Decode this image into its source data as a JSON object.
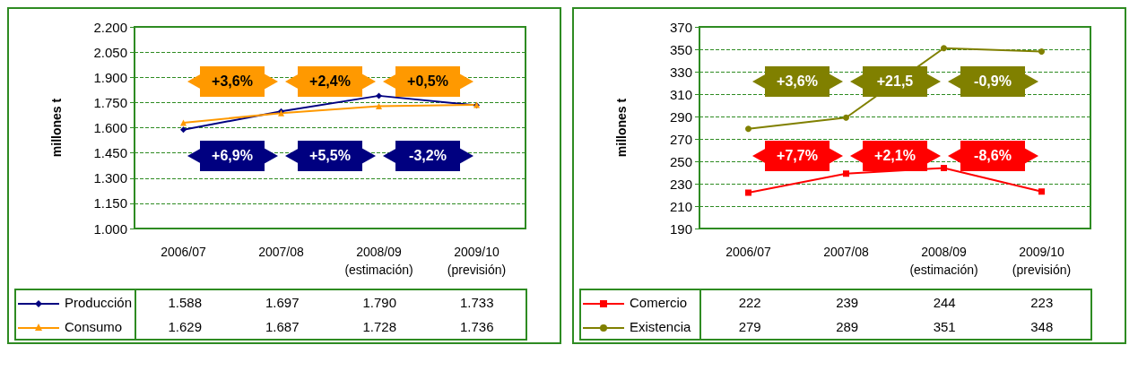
{
  "chart_data": [
    {
      "type": "line",
      "ylabel": "millones t",
      "categories": [
        "2006/07",
        "2007/08",
        "2008/09\n(estimación)",
        "2009/10\n(previsión)"
      ],
      "series": [
        {
          "name": "Producción",
          "color": "#000080",
          "marker": "diamond",
          "values": [
            1588,
            1697,
            1790,
            1733
          ],
          "value_labels": [
            "1.588",
            "1.697",
            "1.790",
            "1.733"
          ]
        },
        {
          "name": "Consumo",
          "color": "#ff9900",
          "marker": "triangle",
          "values": [
            1629,
            1687,
            1728,
            1736
          ],
          "value_labels": [
            "1.629",
            "1.687",
            "1.728",
            "1.736"
          ]
        }
      ],
      "ylim": [
        1000,
        2200
      ],
      "yticks": [
        {
          "value": 1000,
          "label": "1.000"
        },
        {
          "value": 1150,
          "label": "1.150"
        },
        {
          "value": 1300,
          "label": "1.300"
        },
        {
          "value": 1450,
          "label": "1.450"
        },
        {
          "value": 1600,
          "label": "1.600"
        },
        {
          "value": 1750,
          "label": "1.750"
        },
        {
          "value": 1900,
          "label": "1.900"
        },
        {
          "value": 2050,
          "label": "2.050"
        },
        {
          "value": 2200,
          "label": "2.200"
        }
      ],
      "grid": "y",
      "legend": "bottom",
      "annotations": [
        "+3,6%",
        "+2,4%",
        "+0,5%",
        "+6,9%",
        "+5,5%",
        "-3,2%"
      ]
    },
    {
      "type": "line",
      "ylabel": "millones t",
      "categories": [
        "2006/07",
        "2007/08",
        "2008/09\n(estimación)",
        "2009/10\n(previsión)"
      ],
      "series": [
        {
          "name": "Comercio",
          "color": "#ff0000",
          "marker": "square",
          "values": [
            222,
            239,
            244,
            223
          ]
        },
        {
          "name": "Existencia",
          "color": "#808000",
          "marker": "circle",
          "values": [
            279,
            289,
            351,
            348
          ]
        }
      ],
      "ylim": [
        190,
        370
      ],
      "yticks": [
        190,
        210,
        230,
        250,
        270,
        290,
        310,
        330,
        350,
        370
      ],
      "grid": "y",
      "legend": "bottom",
      "data_labels": true,
      "annotations": [
        "+3,6%",
        "+21,5",
        "-0,9%",
        "+7,7%",
        "+2,1%",
        "-8,6%"
      ]
    }
  ]
}
